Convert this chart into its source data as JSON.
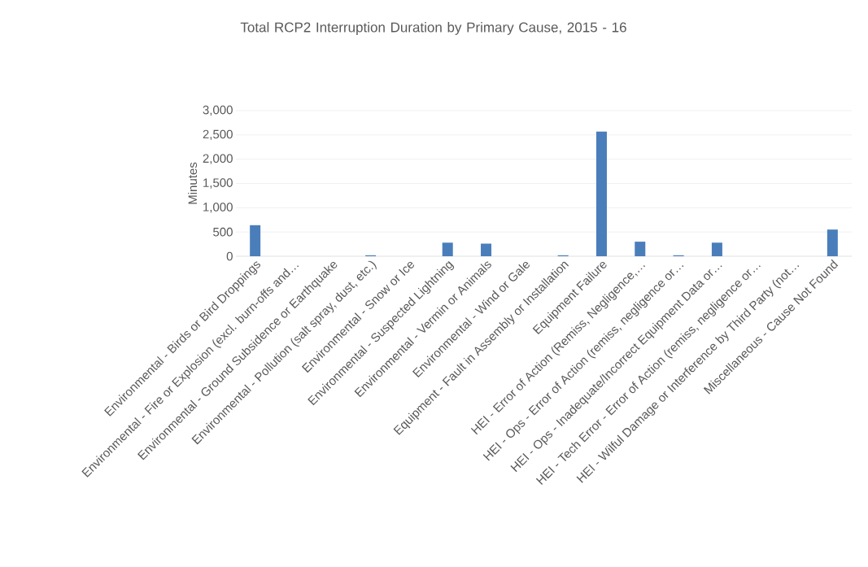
{
  "chart_data": {
    "type": "bar",
    "title": "Total RCP2 Interruption Duration by Primary Cause, 2015 - 16",
    "ylabel": "Minutes",
    "categories": [
      "Environmental - Birds or Bird Droppings",
      "Environmental - Fire or Explosion (excl. burn-offs and…",
      "Environmental - Ground Subsidence or Earthquake",
      "Environmental - Pollution  (salt spray, dust, etc.)",
      "Environmental - Snow or Ice",
      "Environmental - Suspected Lightning",
      "Environmental - Vermin or Animals",
      "Environmental - Wind or Gale",
      "Equipment - Fault in Assembly or Installation",
      "Equipment Failure",
      "HEI - Error of Action (Remiss, Negligence,…",
      "HEI - Ops - Error of Action (remiss, negligence or…",
      "HEI - Ops - Inadequate/Incorrect Equipment Data or…",
      "HEI - Tech Error - Error of Action (remiss, negligence or…",
      "HEI - Wilful Damage or Interference by Third Party (not…",
      "Miscellaneous - Cause Not Found"
    ],
    "values": [
      640,
      0,
      0,
      20,
      0,
      280,
      260,
      0,
      20,
      2570,
      300,
      20,
      280,
      0,
      0,
      550
    ],
    "color": "#4a7ebb",
    "ylim": [
      0,
      3000
    ],
    "yticks": [
      0,
      {
        "value": 500,
        "label": "500"
      },
      {
        "value": 1000,
        "label": "1,000"
      },
      {
        "value": 1500,
        "label": "1,500"
      },
      {
        "value": 2000,
        "label": "2,000"
      },
      {
        "value": 2500,
        "label": "2,500"
      },
      {
        "value": 3000,
        "label": "3,000"
      }
    ],
    "grid": "y"
  }
}
